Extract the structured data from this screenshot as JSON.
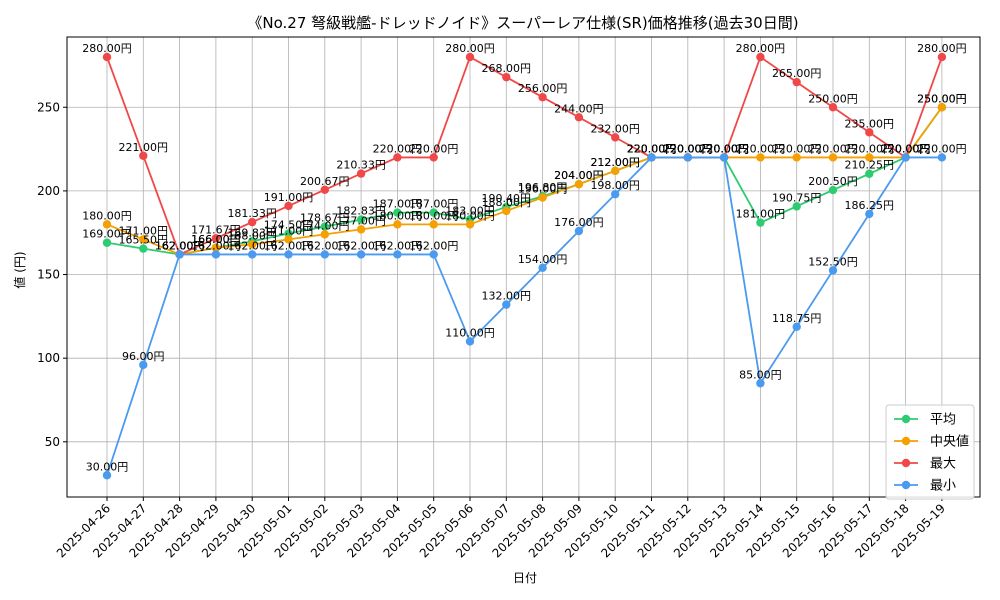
{
  "chart_data": {
    "type": "line",
    "title": "《No.27 弩級戦艦-ドレッドノイド》スーパーレア仕様(SR)価格推移(過去30日間)",
    "xlabel": "日付",
    "ylabel": "値 (円)",
    "ylim": [
      17,
      292
    ],
    "yticks": [
      50,
      100,
      150,
      200,
      250
    ],
    "grid": true,
    "legend_position": "bottom-right",
    "value_suffix": "円",
    "categories": [
      "2025-04-26",
      "2025-04-27",
      "2025-04-28",
      "2025-04-29",
      "2025-04-30",
      "2025-05-01",
      "2025-05-02",
      "2025-05-03",
      "2025-05-04",
      "2025-05-05",
      "2025-05-06",
      "2025-05-07",
      "2025-05-08",
      "2025-05-09",
      "2025-05-10",
      "2025-05-11",
      "2025-05-12",
      "2025-05-13",
      "2025-05-14",
      "2025-05-15",
      "2025-05-16",
      "2025-05-17",
      "2025-05-18",
      "2025-05-19"
    ],
    "series": [
      {
        "name": "平均",
        "color": "#2ecc71",
        "values": [
          169.0,
          165.5,
          162.0,
          166.0,
          169.83,
          174.5,
          178.67,
          182.83,
          187.0,
          187.0,
          183.0,
          190.4,
          196.8,
          204.0,
          212.0,
          220.0,
          220.0,
          220.0,
          181.0,
          190.75,
          200.5,
          210.25,
          220.0,
          250.0
        ]
      },
      {
        "name": "中央値",
        "color": "#f5a000",
        "values": [
          180.0,
          171.0,
          162.0,
          166.0,
          168.0,
          171.0,
          174.0,
          177.0,
          180.0,
          180.0,
          180.0,
          188.0,
          196.0,
          204.0,
          212.0,
          220.0,
          220.0,
          220.0,
          220.0,
          220.0,
          220.0,
          220.0,
          220.0,
          250.0
        ]
      },
      {
        "name": "最大",
        "color": "#f04848",
        "values": [
          280.0,
          221.0,
          162.0,
          171.67,
          181.33,
          191.0,
          200.67,
          210.33,
          220.0,
          220.0,
          280.0,
          268.0,
          256.0,
          244.0,
          232.0,
          220.0,
          220.0,
          220.0,
          280.0,
          265.0,
          250.0,
          235.0,
          220.0,
          280.0
        ]
      },
      {
        "name": "最小",
        "color": "#4a9af0",
        "values": [
          30.0,
          96.0,
          162.0,
          162.0,
          162.0,
          162.0,
          162.0,
          162.0,
          162.0,
          162.0,
          110.0,
          132.0,
          154.0,
          176.0,
          198.0,
          220.0,
          220.0,
          220.0,
          85.0,
          118.75,
          152.5,
          186.25,
          220.0,
          220.0
        ]
      }
    ]
  }
}
